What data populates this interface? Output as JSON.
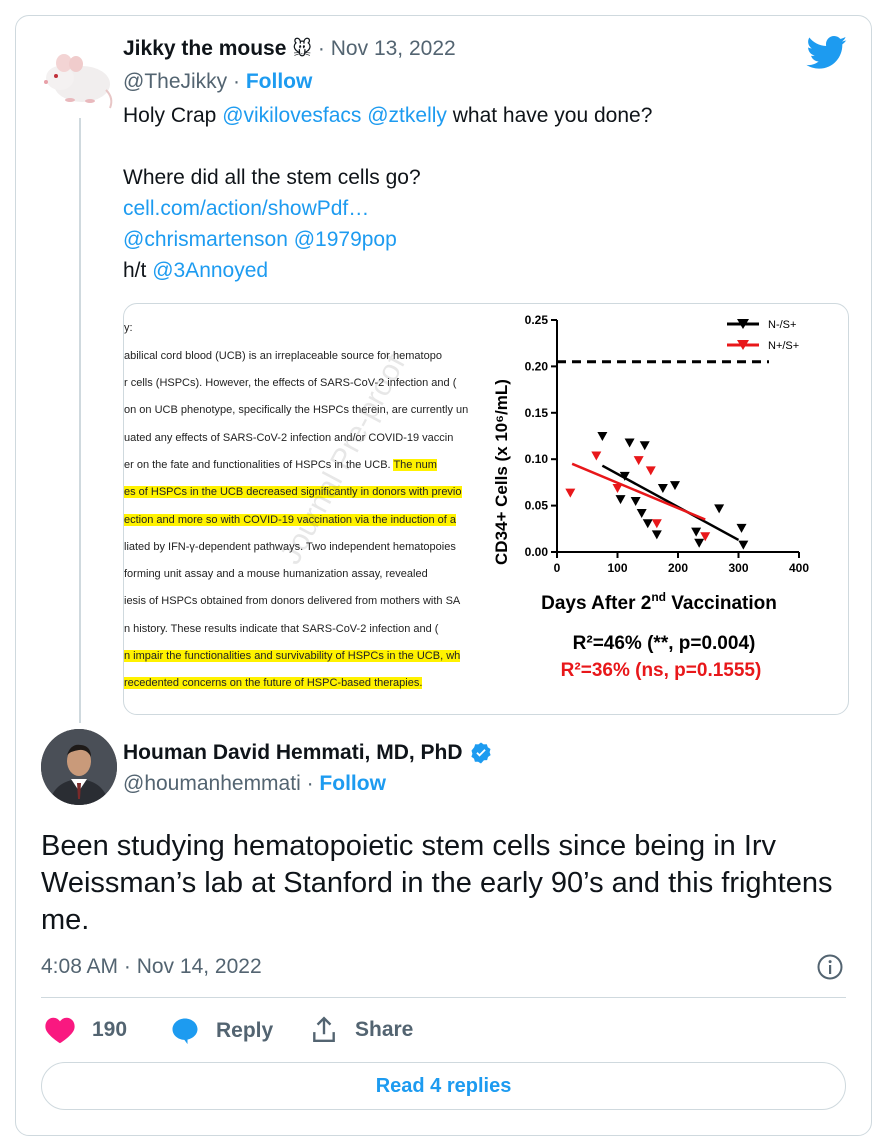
{
  "quoted_tweet": {
    "display_name": "Jikky the mouse",
    "name_emoji": "🐭",
    "sep": "·",
    "date": "Nov 13, 2022",
    "handle": "@TheJikky",
    "follow": "Follow",
    "line1_prefix": "Holy Crap ",
    "mention1": "@vikilovesfacs",
    "mention2": "@ztkelly",
    "line1_suffix": " what have you done?",
    "line2": "Where did all the stem cells go?",
    "link": "cell.com/action/showPdf…",
    "mention3": "@chrismartenson",
    "mention4": "@1979pop",
    "ht_prefix": "h/t ",
    "mention5": "@3Annoyed"
  },
  "embed_image": {
    "doc_lines": [
      "y:",
      "abilical cord blood (UCB) is an irreplaceable source for hematopo",
      "r cells (HSPCs). However, the effects of SARS-CoV-2 infection and (",
      "on on UCB phenotype, specifically the HSPCs therein, are currently un",
      "uated any effects of SARS-CoV-2 infection and/or COVID-19 vaccin",
      "er on the fate and functionalities of HSPCs in the UCB.",
      "The num",
      "es of HSPCs in the UCB decreased significantly in donors with previo",
      "ection and more so with COVID-19 vaccination via the induction of a",
      "liated by IFN-γ-dependent pathways. Two independent hematopoies",
      "forming unit assay and a mouse humanization assay, revealed",
      "iesis of HSPCs obtained from donors delivered from mothers with SA",
      "n history. These results indicate that SARS-CoV-2 infection and (",
      "n impair the functionalities and survivability of HSPCs in the UCB, wh",
      "recedented concerns on the future of HSPC-based therapies."
    ],
    "watermark": "Journal Pre-proof"
  },
  "chart_data": {
    "type": "scatter",
    "xlabel": "Days After 2nd Vaccination",
    "xlabel_main": "Days After 2",
    "xlabel_sup": "nd",
    "xlabel_end": " Vaccination",
    "ylabel": "CD34+ Cells (x 10⁶/mL)",
    "xlim": [
      0,
      400
    ],
    "ylim": [
      0,
      0.25
    ],
    "x_ticks": [
      "0",
      "100",
      "200",
      "300",
      "400"
    ],
    "y_ticks": [
      "0.00",
      "0.05",
      "0.10",
      "0.15",
      "0.20",
      "0.25"
    ],
    "reference_line_y": 0.205,
    "series": [
      {
        "name": "N-/S+",
        "color": "#000000",
        "points": [
          [
            75,
            0.125
          ],
          [
            105,
            0.057
          ],
          [
            112,
            0.082
          ],
          [
            120,
            0.118
          ],
          [
            130,
            0.055
          ],
          [
            140,
            0.042
          ],
          [
            145,
            0.115
          ],
          [
            150,
            0.031
          ],
          [
            165,
            0.019
          ],
          [
            175,
            0.069
          ],
          [
            195,
            0.072
          ],
          [
            230,
            0.022
          ],
          [
            235,
            0.01
          ],
          [
            268,
            0.047
          ],
          [
            305,
            0.026
          ],
          [
            308,
            0.008
          ]
        ],
        "fit": [
          [
            75,
            0.093
          ],
          [
            300,
            0.013
          ]
        ]
      },
      {
        "name": "N+/S+",
        "color": "#e8171a",
        "points": [
          [
            22,
            0.064
          ],
          [
            65,
            0.104
          ],
          [
            100,
            0.069
          ],
          [
            135,
            0.099
          ],
          [
            155,
            0.088
          ],
          [
            165,
            0.031
          ],
          [
            245,
            0.017
          ]
        ],
        "fit": [
          [
            25,
            0.095
          ],
          [
            245,
            0.035
          ]
        ]
      }
    ],
    "r2_black": "R²=46% (**,  p=0.004)",
    "r2_red": "R²=36% (ns, p=0.1555)"
  },
  "main_tweet": {
    "display_name": "Houman David Hemmati, MD, PhD",
    "handle": "@houmanhemmati",
    "sep": "·",
    "follow": "Follow",
    "text": "Been studying hematopoietic stem cells since being in Irv Weissman’s lab at Stanford in the early 90’s and this frightens me.",
    "timestamp": "4:08 AM · Nov 14, 2022"
  },
  "actions": {
    "like_count": "190",
    "reply": "Reply",
    "share": "Share",
    "read_replies": "Read 4 replies"
  },
  "colors": {
    "accent": "#1d9bf0",
    "like": "#f91880",
    "muted": "#536471"
  },
  "icons": [
    "twitter-bird-icon",
    "verified-badge-icon",
    "info-icon",
    "heart-icon",
    "reply-bubble-icon",
    "share-upload-icon",
    "mouse-emoji-icon"
  ]
}
